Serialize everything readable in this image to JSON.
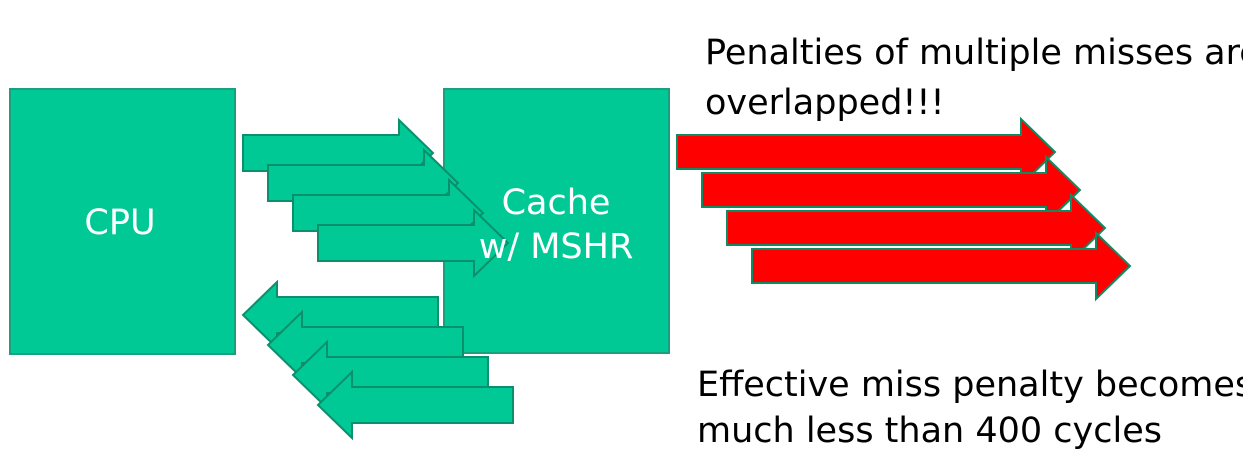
{
  "colors": {
    "box_fill": "#00c996",
    "box_stroke": "#1aa07c",
    "arrow_green": "#00c996",
    "arrow_green_stroke": "#0b8f6c",
    "arrow_red": "#ff0000",
    "arrow_red_stroke": "#0f8a62",
    "box_text": "#ffffff",
    "note_text": "#000000"
  },
  "cpu": {
    "label": "CPU"
  },
  "cache": {
    "line1": "Cache",
    "line2": "w/ MSHR"
  },
  "notes": {
    "top": [
      "Penalties of multiple misses are",
      "overlapped!!!"
    ],
    "bottom": [
      "Effective miss penalty becomes",
      "much less than 400 cycles"
    ]
  },
  "arrows": {
    "requests_count": 4,
    "responses_count": 4,
    "misses_count": 4
  }
}
